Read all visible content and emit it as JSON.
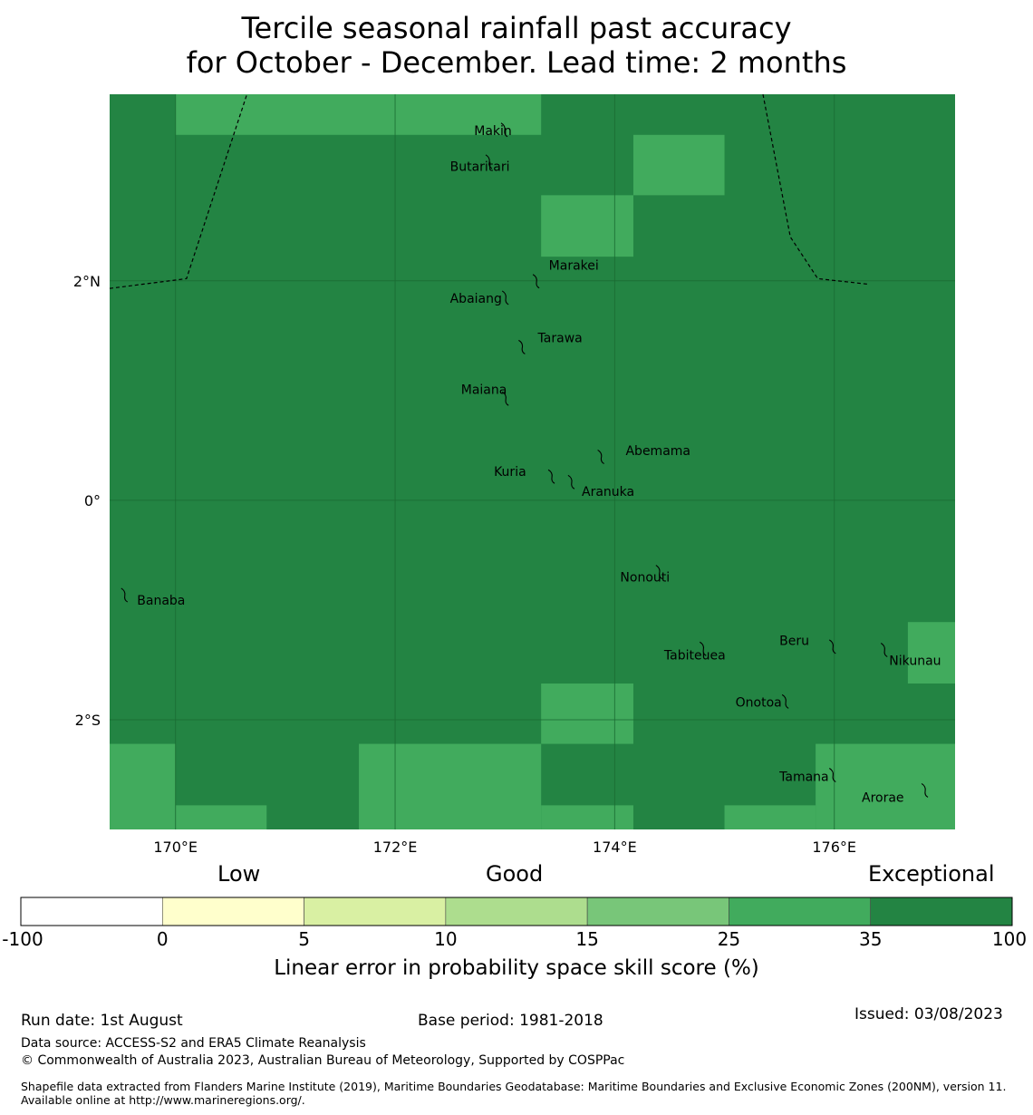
{
  "title": {
    "line1": "Tercile seasonal rainfall past accuracy",
    "line2": "for October - December. Lead time: 2 months"
  },
  "colors": {
    "dark_green": "#238443",
    "medium_green": "#41ab5d",
    "grid_line": "#1a6b32",
    "boundary": "#000000"
  },
  "map": {
    "lon_range": [
      169.4,
      177.1
    ],
    "lat_range": [
      -3.0,
      3.7
    ],
    "lon_ticks": [
      {
        "value": 170,
        "label": "170°E"
      },
      {
        "value": 172,
        "label": "172°E"
      },
      {
        "value": 174,
        "label": "174°E"
      },
      {
        "value": 176,
        "label": "176°E"
      }
    ],
    "lat_ticks": [
      {
        "value": 2,
        "label": "2°N"
      },
      {
        "value": 0,
        "label": "0°"
      },
      {
        "value": -2,
        "label": "2°S"
      }
    ],
    "background_category": "35 to 100",
    "cells_25_to_35": [
      {
        "lon": [
          170.0,
          172.0
        ],
        "lat": [
          3.33,
          3.7
        ]
      },
      {
        "lon": [
          172.0,
          173.33
        ],
        "lat": [
          3.33,
          3.7
        ]
      },
      {
        "lon": [
          174.17,
          175.0
        ],
        "lat": [
          2.78,
          3.33
        ]
      },
      {
        "lon": [
          173.33,
          174.17
        ],
        "lat": [
          2.22,
          2.78
        ]
      },
      {
        "lon": [
          176.67,
          177.1
        ],
        "lat": [
          -1.67,
          -1.11
        ]
      },
      {
        "lon": [
          173.33,
          174.17
        ],
        "lat": [
          -2.22,
          -1.67
        ]
      },
      {
        "lon": [
          169.4,
          170.0
        ],
        "lat": [
          -3.0,
          -2.22
        ]
      },
      {
        "lon": [
          170.0,
          170.83
        ],
        "lat": [
          -3.0,
          -2.78
        ]
      },
      {
        "lon": [
          171.67,
          173.33
        ],
        "lat": [
          -3.0,
          -2.22
        ]
      },
      {
        "lon": [
          173.33,
          174.17
        ],
        "lat": [
          -3.0,
          -2.78
        ]
      },
      {
        "lon": [
          175.0,
          175.83
        ],
        "lat": [
          -3.0,
          -2.78
        ]
      },
      {
        "lon": [
          175.83,
          177.1
        ],
        "lat": [
          -3.0,
          -2.22
        ]
      }
    ],
    "boundary_lines": [
      [
        [
          169.4,
          1.93
        ],
        [
          170.1,
          2.02
        ],
        [
          170.65,
          3.7
        ]
      ],
      [
        [
          175.35,
          3.7
        ],
        [
          175.6,
          2.4
        ],
        [
          175.85,
          2.02
        ],
        [
          176.3,
          1.97
        ]
      ]
    ],
    "islands": [
      {
        "name": "Makin",
        "lon": 172.99,
        "lat": 3.38,
        "label_lon": 172.72,
        "label_lat": 3.33
      },
      {
        "name": "Butaritari",
        "lon": 172.85,
        "lat": 3.09,
        "label_lon": 172.5,
        "label_lat": 3.0
      },
      {
        "name": "Marakei",
        "lon": 173.28,
        "lat": 2.0,
        "label_lon": 173.4,
        "label_lat": 2.1
      },
      {
        "name": "Abaiang",
        "lon": 173.0,
        "lat": 1.85,
        "label_lon": 172.5,
        "label_lat": 1.8
      },
      {
        "name": "Tarawa",
        "lon": 173.15,
        "lat": 1.4,
        "label_lon": 173.3,
        "label_lat": 1.44
      },
      {
        "name": "Maiana",
        "lon": 173.0,
        "lat": 0.93,
        "label_lon": 172.6,
        "label_lat": 0.97
      },
      {
        "name": "Abemama",
        "lon": 173.87,
        "lat": 0.4,
        "label_lon": 174.1,
        "label_lat": 0.41
      },
      {
        "name": "Kuria",
        "lon": 173.42,
        "lat": 0.22,
        "label_lon": 172.9,
        "label_lat": 0.22
      },
      {
        "name": "Aranuka",
        "lon": 173.6,
        "lat": 0.17,
        "label_lon": 173.7,
        "label_lat": 0.04
      },
      {
        "name": "Nonouti",
        "lon": 174.4,
        "lat": -0.65,
        "label_lon": 174.05,
        "label_lat": -0.74
      },
      {
        "name": "Banaba",
        "lon": 169.53,
        "lat": -0.86,
        "label_lon": 169.65,
        "label_lat": -0.95
      },
      {
        "name": "Tabiteuea",
        "lon": 174.8,
        "lat": -1.35,
        "label_lon": 174.45,
        "label_lat": -1.45
      },
      {
        "name": "Beru",
        "lon": 175.98,
        "lat": -1.33,
        "label_lon": 175.5,
        "label_lat": -1.32
      },
      {
        "name": "Nikunau",
        "lon": 176.45,
        "lat": -1.36,
        "label_lon": 176.5,
        "label_lat": -1.5
      },
      {
        "name": "Onotoa",
        "lon": 175.55,
        "lat": -1.83,
        "label_lon": 175.1,
        "label_lat": -1.88
      },
      {
        "name": "Tamana",
        "lon": 175.98,
        "lat": -2.5,
        "label_lon": 175.5,
        "label_lat": -2.56
      },
      {
        "name": "Arorae",
        "lon": 176.82,
        "lat": -2.64,
        "label_lon": 176.25,
        "label_lat": -2.75
      }
    ]
  },
  "colorbar": {
    "top_labels": {
      "low": "Low",
      "good": "Good",
      "exceptional": "Exceptional"
    },
    "ticks": [
      "-100",
      "0",
      "5",
      "10",
      "15",
      "25",
      "35",
      "100"
    ],
    "colors": [
      "#ffffff",
      "#ffffcc",
      "#d9f0a3",
      "#addd8e",
      "#78c679",
      "#41ab5d",
      "#238443"
    ],
    "title": "Linear error in probability space skill score (%)"
  },
  "footer": {
    "run_date": "Run date: 1st August",
    "base_period": "Base period: 1981-2018",
    "issued": "Issued: 03/08/2023",
    "data_source": "Data source: ACCESS-S2 and ERA5 Climate Reanalysis",
    "copyright": "© Commonwealth of Australia 2023, Australian Bureau of Meteorology, Supported by COSPPac",
    "shapefile": "Shapefile data extracted from Flanders Marine Institute (2019), Maritime Boundaries Geodatabase: Maritime Boundaries and Exclusive Economic Zones (200NM), version 11. Available online at http://www.marineregions.org/."
  }
}
